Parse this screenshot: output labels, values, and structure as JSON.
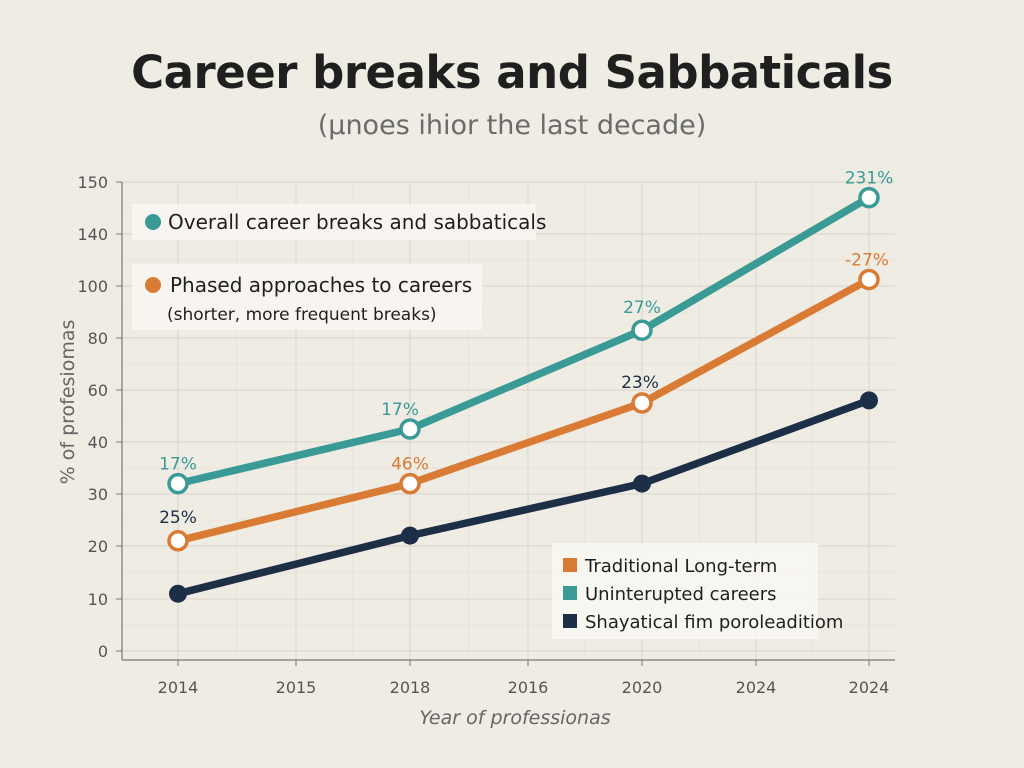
{
  "title": "Career breaks and Sabbaticals",
  "subtitle": "(μnoes ihior the last decade)",
  "colors": {
    "teal": "#3a9a96",
    "orange": "#d97a35",
    "navy": "#1d2e47",
    "grid": "#d8d4cb",
    "axis": "#777777"
  },
  "annotations": {
    "overall": "Overall career breaks and sabbaticals",
    "phased_line1": "Phased approaches to careers",
    "phased_line2": "(shorter, more frequent breaks)"
  },
  "legend": [
    {
      "label": "Traditional Long-term",
      "color": "#d97a35"
    },
    {
      "label": "Uninterupted careers",
      "color": "#3a9a96"
    },
    {
      "label": "Shayatical fim poroleaditiom",
      "color": "#1d2e47"
    }
  ],
  "chart_data": {
    "type": "line",
    "title": "Career breaks and Sabbaticals",
    "subtitle": "(μnoes ihior the last decade)",
    "xlabel": "Year of professionas",
    "ylabel": "% of profesiomas",
    "x": [
      "2014",
      "2015",
      "2018",
      "2016",
      "2020",
      "2024",
      "2024"
    ],
    "y_ticks": [
      "0",
      "10",
      "20",
      "30",
      "40",
      "60",
      "80",
      "100",
      "140",
      "150"
    ],
    "grid": true,
    "series": [
      {
        "name": "Overall career breaks and sabbaticals",
        "color": "#3a9a96",
        "points": [
          {
            "x_index": 0,
            "y": 32,
            "label": "17%"
          },
          {
            "x_index": 2,
            "y": 45,
            "label": "17%"
          },
          {
            "x_index": 4,
            "y": 83,
            "label": "27%"
          },
          {
            "x_index": 6,
            "y": 147,
            "label": "231%"
          }
        ],
        "marker": "hollow"
      },
      {
        "name": "Phased approaches to careers",
        "color": "#d97a35",
        "points": [
          {
            "x_index": 0,
            "y": 21,
            "label": "25%"
          },
          {
            "x_index": 2,
            "y": 32,
            "label": "46%"
          },
          {
            "x_index": 4,
            "y": 55,
            "label": "23%"
          },
          {
            "x_index": 6,
            "y": 105,
            "label": "-27%"
          }
        ],
        "marker": "hollow"
      },
      {
        "name": "Shayatical fim poroleaditiom",
        "color": "#1d2e47",
        "points": [
          {
            "x_index": 0,
            "y": 11
          },
          {
            "x_index": 2,
            "y": 22
          },
          {
            "x_index": 4,
            "y": 32
          },
          {
            "x_index": 6,
            "y": 56
          }
        ],
        "marker": "filled"
      }
    ]
  }
}
